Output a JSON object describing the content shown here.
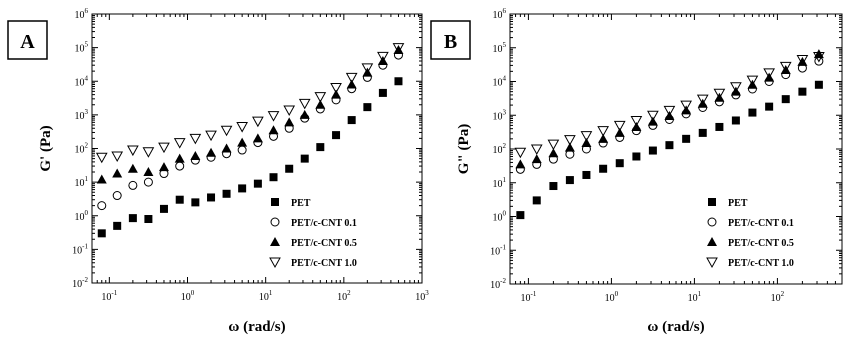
{
  "chart_data": [
    {
      "panel_label": "A",
      "type": "scatter",
      "xlabel": "ω (rad/s)",
      "ylabel": "G' (Pa)",
      "xscale": "log",
      "yscale": "log",
      "xlim": [
        0.06,
        1000
      ],
      "ylim": [
        0.01,
        1000000
      ],
      "x_ticks": [
        {
          "b": "10",
          "e": "-1"
        },
        {
          "b": "10",
          "e": "0"
        },
        {
          "b": "10",
          "e": "1"
        },
        {
          "b": "10",
          "e": "2"
        },
        {
          "b": "10",
          "e": "3"
        }
      ],
      "y_ticks": [
        {
          "b": "10",
          "e": "-2"
        },
        {
          "b": "10",
          "e": "-1"
        },
        {
          "b": "10",
          "e": "0"
        },
        {
          "b": "10",
          "e": "1"
        },
        {
          "b": "10",
          "e": "2"
        },
        {
          "b": "10",
          "e": "3"
        },
        {
          "b": "10",
          "e": "4"
        },
        {
          "b": "10",
          "e": "5"
        },
        {
          "b": "10",
          "e": "6"
        }
      ],
      "legend_position": "lower-right",
      "series": [
        {
          "name": "PET",
          "marker": "square",
          "x": [
            0.08,
            0.126,
            0.2,
            0.316,
            0.5,
            0.795,
            1.26,
            2,
            3.16,
            5,
            7.95,
            12.6,
            20,
            31.6,
            50,
            79.5,
            126,
            200,
            316,
            500
          ],
          "y": [
            0.3,
            0.5,
            0.85,
            0.8,
            1.6,
            3,
            2.5,
            3.5,
            4.5,
            6.5,
            9,
            14,
            25,
            50,
            110,
            250,
            700,
            1700,
            4500,
            10000
          ]
        },
        {
          "name": "PET/c-CNT 0.1",
          "marker": "circle-open",
          "x": [
            0.08,
            0.126,
            0.2,
            0.316,
            0.5,
            0.795,
            1.26,
            2,
            3.16,
            5,
            7.95,
            12.6,
            20,
            31.6,
            50,
            79.5,
            126,
            200,
            316,
            500
          ],
          "y": [
            2,
            4,
            8,
            10,
            18,
            30,
            45,
            55,
            70,
            90,
            150,
            230,
            400,
            800,
            1500,
            2800,
            6000,
            13000,
            30000,
            60000
          ]
        },
        {
          "name": "PET/c-CNT 0.5",
          "marker": "triangle-up-filled",
          "x": [
            0.08,
            0.126,
            0.2,
            0.316,
            0.5,
            0.795,
            1.26,
            2,
            3.16,
            5,
            7.95,
            12.6,
            20,
            31.6,
            50,
            79.5,
            126,
            200,
            316,
            500
          ],
          "y": [
            12,
            18,
            25,
            20,
            28,
            50,
            60,
            75,
            100,
            150,
            200,
            350,
            600,
            1000,
            2000,
            4000,
            8000,
            18000,
            40000,
            85000
          ]
        },
        {
          "name": "PET/c-CNT 1.0",
          "marker": "triangle-down-open",
          "x": [
            0.08,
            0.126,
            0.2,
            0.316,
            0.5,
            0.795,
            1.26,
            2,
            3.16,
            5,
            7.95,
            12.6,
            20,
            31.6,
            50,
            79.5,
            126,
            200,
            316,
            500
          ],
          "y": [
            55,
            60,
            90,
            80,
            110,
            150,
            200,
            250,
            350,
            450,
            650,
            950,
            1400,
            2200,
            3500,
            6500,
            13000,
            25000,
            55000,
            100000
          ]
        }
      ]
    },
    {
      "panel_label": "B",
      "type": "scatter",
      "xlabel": "ω (rad/s)",
      "ylabel": "G\" (Pa)",
      "xscale": "log",
      "yscale": "log",
      "xlim": [
        0.06,
        600
      ],
      "ylim": [
        0.01,
        1000000
      ],
      "x_ticks": [
        {
          "b": "10",
          "e": "-1"
        },
        {
          "b": "10",
          "e": "0"
        },
        {
          "b": "10",
          "e": "1"
        },
        {
          "b": "10",
          "e": "2"
        }
      ],
      "y_ticks": [
        {
          "b": "10",
          "e": "-2"
        },
        {
          "b": "10",
          "e": "-1"
        },
        {
          "b": "10",
          "e": "0"
        },
        {
          "b": "10",
          "e": "1"
        },
        {
          "b": "10",
          "e": "2"
        },
        {
          "b": "10",
          "e": "3"
        },
        {
          "b": "10",
          "e": "4"
        },
        {
          "b": "10",
          "e": "5"
        },
        {
          "b": "10",
          "e": "6"
        }
      ],
      "legend_position": "lower-right",
      "series": [
        {
          "name": "PET",
          "marker": "square",
          "x": [
            0.08,
            0.126,
            0.2,
            0.316,
            0.5,
            0.795,
            1.26,
            2,
            3.16,
            5,
            7.95,
            12.6,
            20,
            31.6,
            50,
            79.5,
            126,
            200,
            316
          ],
          "y": [
            1.1,
            3,
            8,
            12,
            17,
            26,
            38,
            60,
            90,
            130,
            200,
            300,
            450,
            700,
            1200,
            1800,
            3000,
            5000,
            8000
          ]
        },
        {
          "name": "PET/c-CNT 0.1",
          "marker": "circle-open",
          "x": [
            0.08,
            0.126,
            0.2,
            0.316,
            0.5,
            0.795,
            1.26,
            2,
            3.16,
            5,
            7.95,
            12.6,
            20,
            31.6,
            50,
            79.5,
            126,
            200,
            316
          ],
          "y": [
            25,
            35,
            50,
            70,
            100,
            150,
            220,
            350,
            500,
            750,
            1100,
            1700,
            2500,
            4000,
            6000,
            10000,
            16000,
            25000,
            40000
          ]
        },
        {
          "name": "PET/c-CNT 0.5",
          "marker": "triangle-up-filled",
          "x": [
            0.08,
            0.126,
            0.2,
            0.316,
            0.5,
            0.795,
            1.26,
            2,
            3.16,
            5,
            7.95,
            12.6,
            20,
            31.6,
            50,
            79.5,
            126,
            200,
            316
          ],
          "y": [
            35,
            50,
            75,
            110,
            150,
            200,
            300,
            450,
            650,
            950,
            1400,
            2200,
            3300,
            5000,
            8000,
            13000,
            22000,
            38000,
            65000
          ]
        },
        {
          "name": "PET/c-CNT 1.0",
          "marker": "triangle-down-open",
          "x": [
            0.08,
            0.126,
            0.2,
            0.316,
            0.5,
            0.795,
            1.26,
            2,
            3.16,
            5,
            7.95,
            12.6,
            20,
            31.6,
            50,
            79.5,
            126,
            200,
            316
          ],
          "y": [
            80,
            100,
            140,
            190,
            250,
            350,
            500,
            700,
            1000,
            1400,
            2000,
            3000,
            4500,
            7000,
            11000,
            18000,
            28000,
            45000,
            55000
          ]
        }
      ]
    }
  ]
}
